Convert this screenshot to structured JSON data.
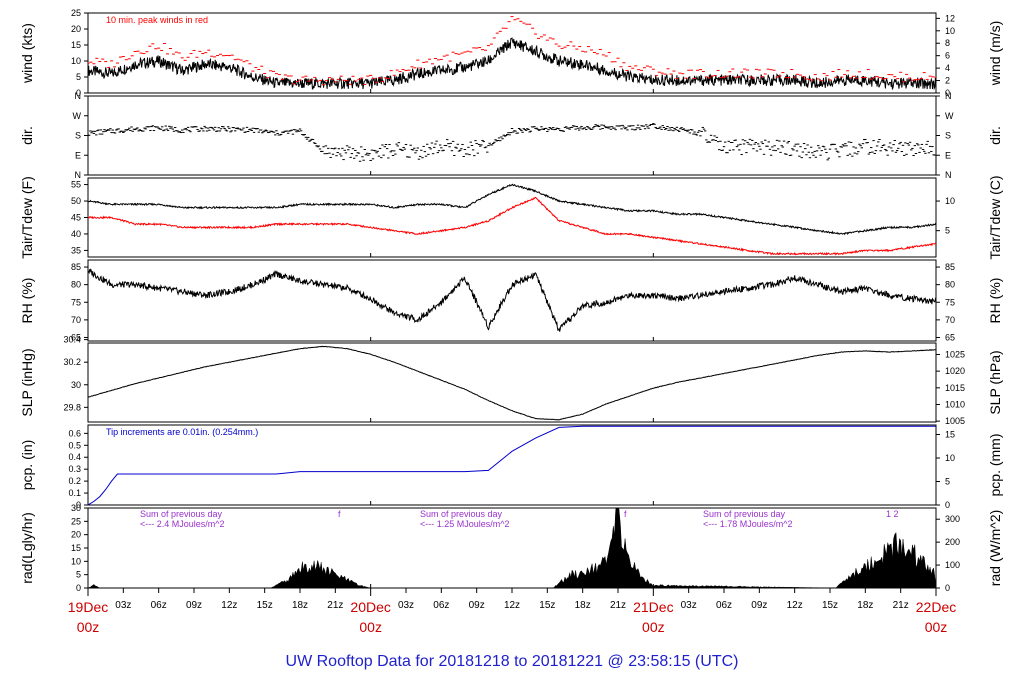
{
  "chart_data": {
    "type": "line",
    "title": "UW Rooftop Data for 20181218  to  20181221 @ 23:58:15  (UTC)",
    "x_day_labels": [
      {
        "day": "19Dec",
        "hour": "00z"
      },
      {
        "day": "20Dec",
        "hour": "00z"
      },
      {
        "day": "21Dec",
        "hour": "00z"
      },
      {
        "day": "22Dec",
        "hour": "00z"
      }
    ],
    "x_hour_labels": [
      "03z",
      "06z",
      "09z",
      "12z",
      "15z",
      "18z",
      "21z",
      "03z",
      "06z",
      "09z",
      "12z",
      "15z",
      "18z",
      "21z",
      "03z",
      "06z",
      "09z",
      "12z",
      "15z",
      "18z",
      "21z"
    ],
    "x_range_hours": [
      0,
      72
    ],
    "panels": [
      {
        "name": "wind",
        "ylabel_left": "wind (kts)",
        "ylabel_right": "wind (m/s)",
        "left_ticks": [
          0,
          5,
          10,
          15,
          20,
          25
        ],
        "right_ticks": [
          0,
          2,
          4,
          6,
          8,
          10,
          12
        ],
        "ylim": [
          0,
          25
        ],
        "annotation": "10 min. peak winds in red",
        "series": [
          {
            "name": "wind",
            "color": "#000000",
            "x": [
              0,
              2,
              4,
              6,
              8,
              10,
              12,
              14,
              16,
              18,
              20,
              22,
              24,
              26,
              28,
              30,
              32,
              34,
              36,
              38,
              40,
              42,
              44,
              46,
              48,
              50,
              52,
              54,
              56,
              58,
              60,
              62,
              64,
              66,
              68,
              70,
              72
            ],
            "y": [
              7,
              6,
              9,
              10,
              7,
              9,
              8,
              5,
              3,
              3,
              3,
              3,
              3,
              4,
              6,
              7,
              8,
              10,
              16,
              13,
              10,
              9,
              7,
              5,
              4,
              4,
              4,
              4,
              4,
              4,
              4,
              3,
              4,
              4,
              3,
              3,
              3
            ]
          },
          {
            "name": "peak",
            "color": "#ff0000",
            "x": [
              0,
              2,
              4,
              6,
              8,
              10,
              12,
              14,
              16,
              18,
              20,
              22,
              24,
              26,
              28,
              30,
              32,
              34,
              36,
              38,
              40,
              42,
              44,
              46,
              48,
              50,
              52,
              54,
              56,
              58,
              60,
              62,
              64,
              66,
              68,
              70,
              72
            ],
            "y": [
              10,
              9,
              13,
              15,
              11,
              13,
              12,
              8,
              5,
              4,
              4,
              4,
              4,
              6,
              9,
              11,
              12,
              14,
              23,
              19,
              15,
              14,
              12,
              8,
              7,
              6,
              6,
              6,
              6,
              6,
              6,
              5,
              6,
              6,
              5,
              5,
              5
            ]
          }
        ]
      },
      {
        "name": "dir",
        "ylabel_left": "dir.",
        "ylabel_right": "dir.",
        "left_ticks": [
          "N",
          "E",
          "S",
          "W",
          "N"
        ],
        "right_ticks": [
          "N",
          "E",
          "S",
          "W",
          "N"
        ],
        "ylim": [
          0,
          360
        ],
        "series": [
          {
            "name": "direction",
            "color": "#000000",
            "x": [
              0,
              2,
              4,
              6,
              8,
              10,
              12,
              14,
              16,
              18,
              20,
              22,
              24,
              26,
              28,
              30,
              32,
              34,
              36,
              38,
              40,
              42,
              44,
              46,
              48,
              50,
              52,
              54,
              56,
              58,
              60,
              62,
              64,
              66,
              68,
              70,
              72
            ],
            "y": [
              190,
              200,
              210,
              215,
              205,
              212,
              208,
              205,
              190,
              200,
              110,
              100,
              95,
              115,
              105,
              130,
              115,
              130,
              200,
              210,
              210,
              215,
              220,
              215,
              225,
              210,
              190,
              120,
              130,
              125,
              120,
              100,
              110,
              130,
              125,
              120,
              125
            ]
          }
        ]
      },
      {
        "name": "temp",
        "ylabel_left": "Tair/Tdew (F)",
        "ylabel_right": "Tair/Tdew (C)",
        "left_ticks": [
          35,
          40,
          45,
          50,
          55
        ],
        "right_ticks": [
          5,
          10
        ],
        "ylim": [
          33,
          57
        ],
        "series": [
          {
            "name": "Tair",
            "color": "#000000",
            "x": [
              0,
              2,
              4,
              6,
              8,
              10,
              12,
              14,
              16,
              18,
              20,
              22,
              24,
              26,
              28,
              30,
              32,
              34,
              36,
              38,
              40,
              42,
              44,
              46,
              48,
              50,
              52,
              54,
              56,
              58,
              60,
              62,
              64,
              66,
              68,
              70,
              72
            ],
            "y": [
              50,
              49,
              49,
              49,
              48,
              48,
              48,
              48,
              48,
              49,
              49,
              49,
              49,
              48,
              49,
              49,
              48,
              52,
              55,
              53,
              50,
              49,
              48,
              47,
              47,
              46,
              46,
              45,
              44,
              43,
              42,
              41,
              40,
              41,
              42,
              42,
              43
            ]
          },
          {
            "name": "Tdew",
            "color": "#ff0000",
            "x": [
              0,
              2,
              4,
              6,
              8,
              10,
              12,
              14,
              16,
              18,
              20,
              22,
              24,
              26,
              28,
              30,
              32,
              34,
              36,
              38,
              40,
              42,
              44,
              46,
              48,
              50,
              52,
              54,
              56,
              58,
              60,
              62,
              64,
              66,
              68,
              70,
              72
            ],
            "y": [
              45,
              45,
              43,
              43,
              42,
              42,
              42,
              42,
              43,
              43,
              43,
              43,
              42,
              41,
              40,
              41,
              42,
              44,
              48,
              51,
              44,
              42,
              40,
              40,
              39,
              38,
              37,
              36,
              35,
              34,
              34,
              34,
              34,
              35,
              35,
              36,
              37
            ]
          }
        ]
      },
      {
        "name": "rh",
        "ylabel_left": "RH (%)",
        "ylabel_right": "RH (%)",
        "left_ticks": [
          65,
          70,
          75,
          80,
          85
        ],
        "right_ticks": [
          65,
          70,
          75,
          80,
          85
        ],
        "ylim": [
          64,
          87
        ],
        "series": [
          {
            "name": "RH",
            "color": "#000000",
            "x": [
              0,
              2,
              4,
              6,
              8,
              10,
              12,
              14,
              16,
              18,
              20,
              22,
              24,
              26,
              28,
              30,
              32,
              34,
              36,
              38,
              40,
              42,
              44,
              46,
              48,
              50,
              52,
              54,
              56,
              58,
              60,
              62,
              64,
              66,
              68,
              70,
              72
            ],
            "y": [
              84,
              80,
              80,
              79,
              78,
              77,
              78,
              80,
              83,
              81,
              80,
              79,
              76,
              72,
              70,
              75,
              82,
              68,
              80,
              83,
              67,
              74,
              75,
              77,
              77,
              76,
              77,
              78,
              79,
              80,
              82,
              80,
              78,
              79,
              77,
              76,
              75
            ]
          }
        ]
      },
      {
        "name": "slp",
        "ylabel_left": "SLP (inHg)",
        "ylabel_right": "SLP (hPa)",
        "left_ticks": [
          29.8,
          30.0,
          30.2,
          30.4
        ],
        "right_ticks": [
          1005,
          1010,
          1015,
          1020,
          1025
        ],
        "ylim": [
          29.67,
          30.37
        ],
        "series": [
          {
            "name": "SLP",
            "color": "#000000",
            "x": [
              0,
              2,
              4,
              6,
              8,
              10,
              12,
              14,
              16,
              18,
              20,
              22,
              24,
              26,
              28,
              30,
              32,
              34,
              36,
              38,
              40,
              42,
              44,
              46,
              48,
              50,
              52,
              54,
              56,
              58,
              60,
              62,
              64,
              66,
              68,
              70,
              72
            ],
            "y": [
              29.89,
              29.95,
              30.01,
              30.06,
              30.11,
              30.16,
              30.2,
              30.24,
              30.28,
              30.32,
              30.34,
              30.32,
              30.27,
              30.2,
              30.12,
              30.04,
              29.96,
              29.86,
              29.77,
              29.7,
              29.69,
              29.74,
              29.83,
              29.9,
              29.97,
              30.02,
              30.06,
              30.1,
              30.14,
              30.18,
              30.22,
              30.26,
              30.29,
              30.3,
              30.29,
              30.3,
              30.31
            ]
          }
        ]
      },
      {
        "name": "pcp",
        "ylabel_left": "pcp. (in)",
        "ylabel_right": "pcp. (mm)",
        "left_ticks": [
          0,
          0.1,
          0.2,
          0.3,
          0.4,
          0.5,
          0.6
        ],
        "right_ticks": [
          0,
          5,
          10,
          15
        ],
        "ylim": [
          0,
          0.67
        ],
        "annotation": "Tip increments are 0.01in. (0.254mm.)",
        "series": [
          {
            "name": "precip",
            "color": "#0000cc",
            "x": [
              0,
              0.5,
              1,
              1.5,
              2,
              2.5,
              4,
              8,
              12,
              16,
              18,
              24,
              30,
              32,
              34,
              36,
              38,
              40,
              42,
              48,
              56,
              64,
              72
            ],
            "y": [
              0,
              0.03,
              0.07,
              0.13,
              0.2,
              0.26,
              0.26,
              0.26,
              0.26,
              0.26,
              0.28,
              0.28,
              0.28,
              0.28,
              0.29,
              0.45,
              0.56,
              0.65,
              0.66,
              0.66,
              0.66,
              0.66,
              0.66
            ]
          }
        ]
      },
      {
        "name": "rad",
        "ylabel_left": "rad(Lgly/hr)",
        "ylabel_right": "rad (W/m^2)",
        "left_ticks": [
          0,
          5,
          10,
          15,
          20,
          25,
          30
        ],
        "right_ticks": [
          0,
          100,
          200,
          300
        ],
        "ylim": [
          0,
          30
        ],
        "notes": [
          {
            "line1": "Sum of previous day",
            "line2": "<--- 2.4 MJoules/m^2",
            "flag": "f"
          },
          {
            "line1": "Sum of previous day",
            "line2": "<--- 1.25 MJoules/m^2",
            "flag": "f"
          },
          {
            "line1": "Sum of previous day",
            "line2": "<--- 1.78 MJoules/m^2",
            "flag": "1   2"
          }
        ],
        "series": [
          {
            "name": "radiation",
            "color": "#000000",
            "x": [
              0,
              0.5,
              1,
              15.5,
              16,
              17,
              18,
              19,
              20,
              21,
              22,
              23,
              24,
              39.5,
              40,
              41,
              42,
              43,
              44,
              45,
              46,
              47,
              48,
              63.5,
              64,
              65,
              66,
              67,
              68,
              69,
              70,
              71,
              72
            ],
            "y": [
              0,
              1,
              0,
              0,
              1,
              3,
              7,
              9,
              7,
              5,
              3,
              1,
              0,
              0,
              2,
              5,
              6,
              8,
              9,
              27,
              10,
              4,
              1,
              0,
              2,
              5,
              8,
              11,
              14,
              17,
              13,
              9,
              5
            ]
          }
        ]
      }
    ]
  }
}
